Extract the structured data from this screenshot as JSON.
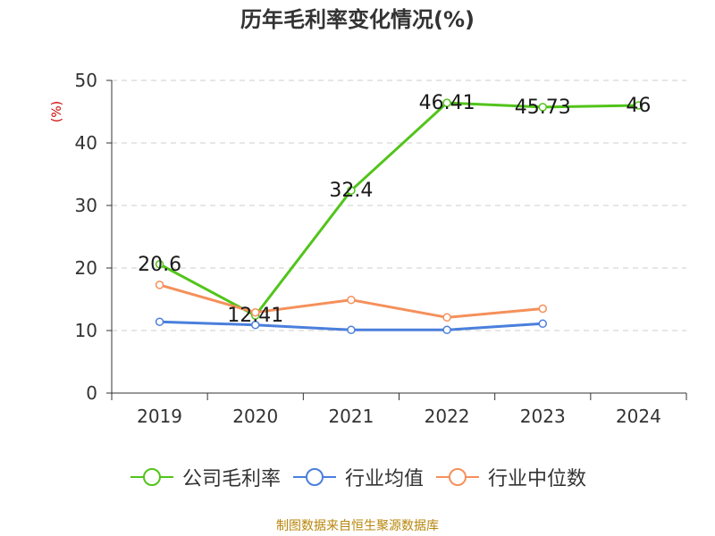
{
  "chart_data": {
    "type": "line",
    "title": "历年毛利率变化情况(%)",
    "ylabel": "(%)",
    "xlabel": "",
    "categories": [
      "2019",
      "2020",
      "2021",
      "2022",
      "2023",
      "2024"
    ],
    "ylim": [
      0,
      50
    ],
    "yticks": [
      0,
      10,
      20,
      30,
      40,
      50
    ],
    "grid": true,
    "legend_position": "bottom",
    "series": [
      {
        "name": "公司毛利率",
        "color": "#52c41a",
        "values": [
          20.6,
          12.41,
          32.4,
          46.41,
          45.73,
          46
        ],
        "labels": [
          "20.6",
          "12.41",
          "32.4",
          "46.41",
          "45.73",
          "46"
        ]
      },
      {
        "name": "行业均值",
        "color": "#4a7fdc",
        "values": [
          11.4,
          10.9,
          10.1,
          10.1,
          11.1,
          null
        ]
      },
      {
        "name": "行业中位数",
        "color": "#f5905a",
        "values": [
          17.3,
          12.9,
          14.9,
          12.1,
          13.5,
          null
        ]
      }
    ]
  },
  "source_note": "制图数据来自恒生聚源数据库"
}
